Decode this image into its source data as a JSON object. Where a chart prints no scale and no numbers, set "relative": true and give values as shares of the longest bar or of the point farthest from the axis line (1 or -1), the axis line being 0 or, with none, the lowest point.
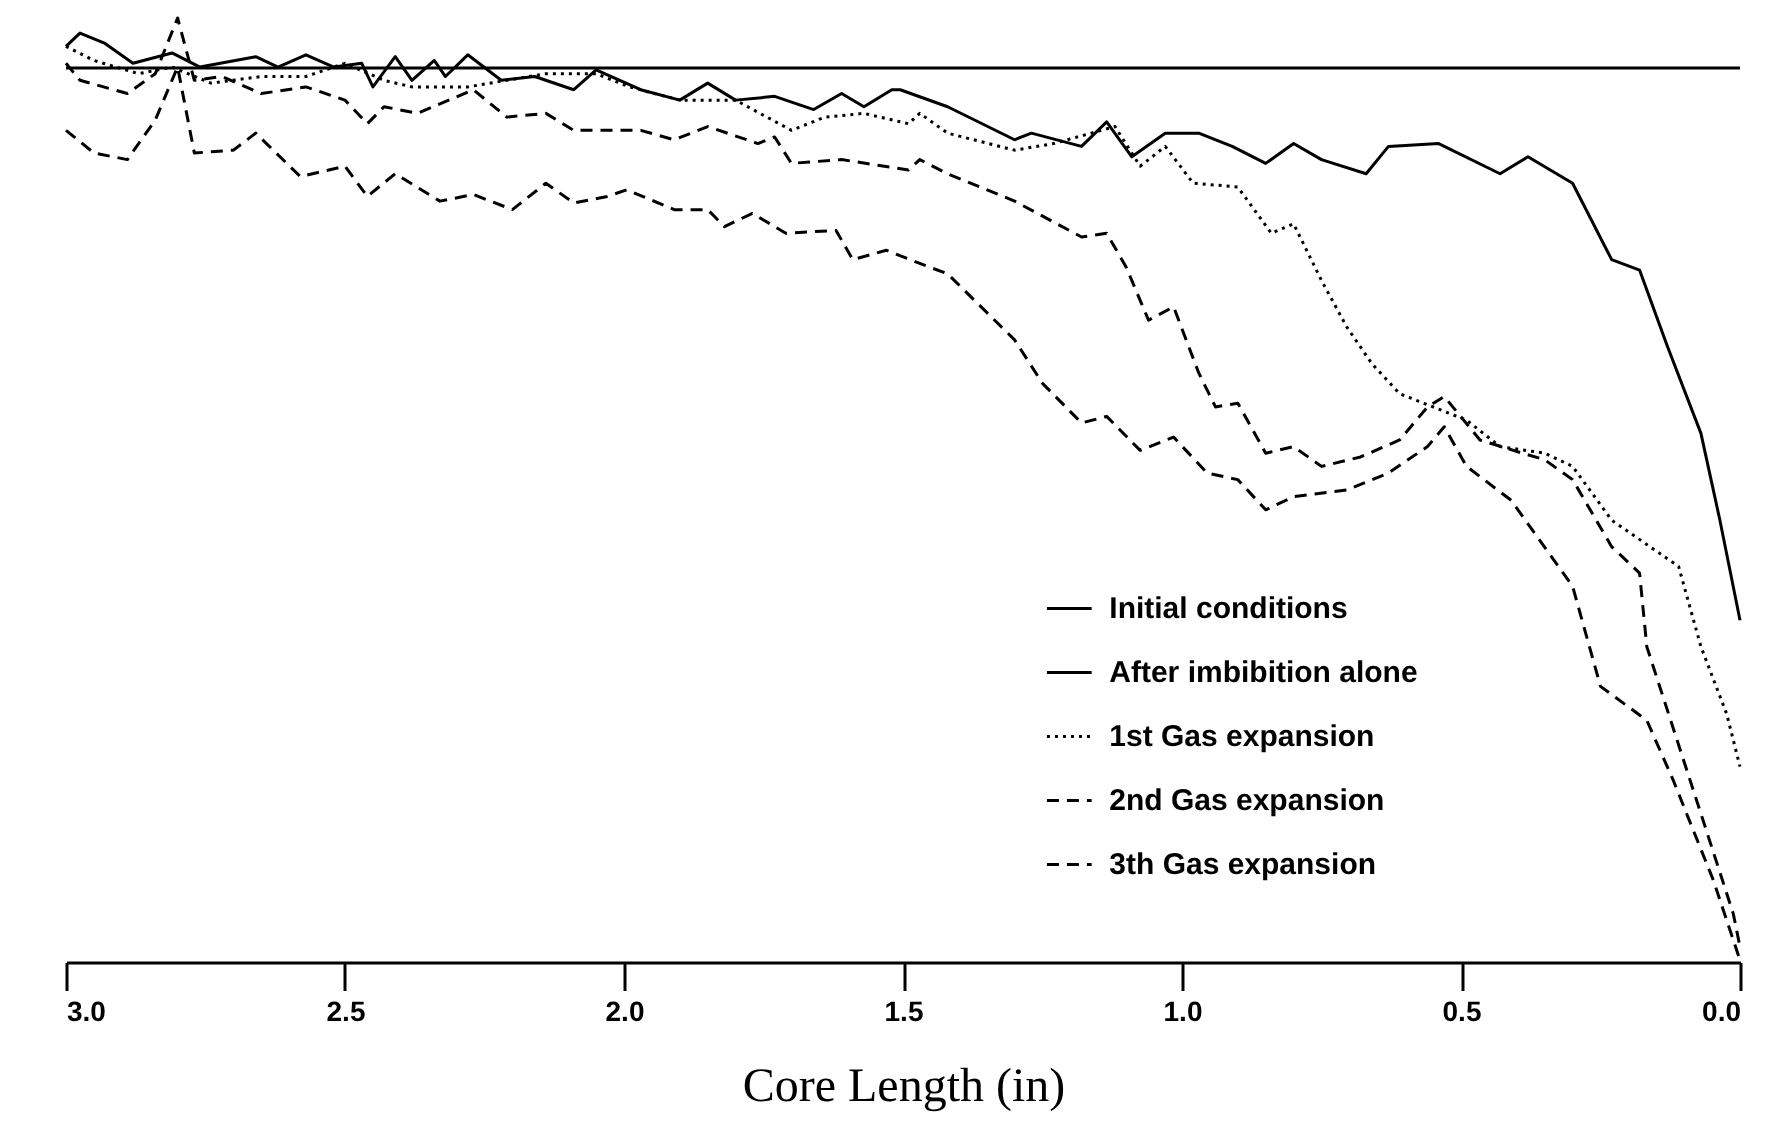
{
  "chart_data": {
    "type": "line",
    "xlabel": "Core Length (in)",
    "relative": true,
    "xlim": [
      3.0,
      0.0
    ],
    "xticks": [
      {
        "value": 3,
        "label": "3.0"
      },
      {
        "value": 2.5,
        "label": "2.5"
      },
      {
        "value": 2,
        "label": "2.0"
      },
      {
        "value": 1.5,
        "label": "1.5"
      },
      {
        "value": 1,
        "label": "1.0"
      },
      {
        "value": 0.5,
        "label": "0.5"
      },
      {
        "value": 0,
        "label": "0.0"
      }
    ],
    "grid": false,
    "legend": "bottom right",
    "series": [
      {
        "name": "Initial conditions",
        "color": "#000000",
        "line_style": "solid",
        "x": [
          3.0,
          0.0
        ],
        "values": [
          0.947,
          0.947
        ]
      },
      {
        "name": "After imbibition alone",
        "color": "#000000",
        "line_style": "solid",
        "x": [
          3.0,
          2.975,
          2.93,
          2.88,
          2.81,
          2.76,
          2.66,
          2.62,
          2.57,
          2.52,
          2.47,
          2.45,
          2.41,
          2.38,
          2.34,
          2.32,
          2.28,
          2.22,
          2.16,
          2.09,
          2.05,
          1.97,
          1.9,
          1.85,
          1.8,
          1.73,
          1.66,
          1.61,
          1.57,
          1.52,
          1.505,
          1.42,
          1.3,
          1.27,
          1.18,
          1.135,
          1.09,
          1.03,
          0.97,
          0.91,
          0.85,
          0.8,
          0.75,
          0.67,
          0.63,
          0.54,
          0.43,
          0.38,
          0.3,
          0.23,
          0.18,
          0.13,
          0.07,
          0.036,
          0.0
        ],
        "values": [
          0.97,
          0.984,
          0.973,
          0.952,
          0.963,
          0.948,
          0.959,
          0.948,
          0.961,
          0.948,
          0.952,
          0.927,
          0.959,
          0.934,
          0.955,
          0.938,
          0.961,
          0.934,
          0.938,
          0.924,
          0.945,
          0.924,
          0.913,
          0.931,
          0.913,
          0.917,
          0.903,
          0.92,
          0.906,
          0.924,
          0.924,
          0.906,
          0.871,
          0.878,
          0.864,
          0.89,
          0.853,
          0.878,
          0.878,
          0.864,
          0.846,
          0.867,
          0.85,
          0.835,
          0.864,
          0.867,
          0.835,
          0.853,
          0.825,
          0.744,
          0.733,
          0.652,
          0.56,
          0.468,
          0.362
        ]
      },
      {
        "name": "1st Gas expansion",
        "color": "#000000",
        "line_style": "dotted",
        "x": [
          3.0,
          2.95,
          2.87,
          2.81,
          2.74,
          2.65,
          2.57,
          2.5,
          2.43,
          2.38,
          2.28,
          2.21,
          2.14,
          2.05,
          1.99,
          1.9,
          1.8,
          1.7,
          1.64,
          1.57,
          1.49,
          1.47,
          1.42,
          1.3,
          1.23,
          1.12,
          1.075,
          1.03,
          0.98,
          0.9,
          0.84,
          0.8,
          0.75,
          0.705,
          0.66,
          0.61,
          0.55,
          0.49,
          0.43,
          0.35,
          0.3,
          0.23,
          0.11,
          0.07,
          0.024,
          0.0
        ],
        "values": [
          0.97,
          0.955,
          0.941,
          0.948,
          0.931,
          0.938,
          0.938,
          0.952,
          0.934,
          0.927,
          0.927,
          0.934,
          0.941,
          0.941,
          0.927,
          0.913,
          0.913,
          0.881,
          0.895,
          0.899,
          0.888,
          0.899,
          0.878,
          0.86,
          0.867,
          0.885,
          0.843,
          0.864,
          0.825,
          0.821,
          0.772,
          0.782,
          0.722,
          0.673,
          0.634,
          0.602,
          0.588,
          0.574,
          0.546,
          0.539,
          0.525,
          0.468,
          0.419,
          0.334,
          0.263,
          0.207
        ]
      },
      {
        "name": "2nd Gas expansion",
        "color": "#000000",
        "line_style": "dashed",
        "x": [
          3.0,
          2.975,
          2.89,
          2.84,
          2.8,
          2.77,
          2.72,
          2.65,
          2.57,
          2.5,
          2.46,
          2.43,
          2.37,
          2.27,
          2.21,
          2.14,
          2.09,
          1.97,
          1.91,
          1.85,
          1.76,
          1.73,
          1.7,
          1.61,
          1.49,
          1.47,
          1.42,
          1.3,
          1.18,
          1.135,
          1.1,
          1.06,
          1.015,
          0.97,
          0.94,
          0.9,
          0.85,
          0.8,
          0.75,
          0.68,
          0.61,
          0.56,
          0.53,
          0.466,
          0.39,
          0.35,
          0.3,
          0.23,
          0.18,
          0.167,
          0.07,
          0.012,
          0.0
        ],
        "values": [
          0.952,
          0.934,
          0.92,
          0.941,
          1.0,
          0.934,
          0.938,
          0.92,
          0.927,
          0.913,
          0.888,
          0.906,
          0.899,
          0.924,
          0.895,
          0.899,
          0.881,
          0.881,
          0.871,
          0.885,
          0.867,
          0.874,
          0.846,
          0.85,
          0.839,
          0.85,
          0.835,
          0.806,
          0.768,
          0.772,
          0.736,
          0.68,
          0.694,
          0.624,
          0.588,
          0.592,
          0.539,
          0.546,
          0.525,
          0.535,
          0.553,
          0.588,
          0.599,
          0.553,
          0.539,
          0.532,
          0.511,
          0.44,
          0.412,
          0.334,
          0.157,
          0.051,
          0.016
        ]
      },
      {
        "name": "3th Gas expansion",
        "color": "#000000",
        "line_style": "dashed",
        "x": [
          3.0,
          2.95,
          2.89,
          2.84,
          2.8,
          2.77,
          2.7,
          2.66,
          2.58,
          2.5,
          2.46,
          2.41,
          2.33,
          2.27,
          2.2,
          2.14,
          2.09,
          2.03,
          1.995,
          1.91,
          1.85,
          1.82,
          1.77,
          1.71,
          1.62,
          1.59,
          1.53,
          1.47,
          1.42,
          1.36,
          1.3,
          1.25,
          1.18,
          1.135,
          1.075,
          1.015,
          0.955,
          0.9,
          0.85,
          0.8,
          0.705,
          0.63,
          0.56,
          0.53,
          0.49,
          0.41,
          0.3,
          0.25,
          0.167,
          0.12,
          0.048,
          0.0
        ],
        "values": [
          0.881,
          0.857,
          0.85,
          0.892,
          0.948,
          0.857,
          0.86,
          0.878,
          0.832,
          0.843,
          0.811,
          0.835,
          0.806,
          0.813,
          0.797,
          0.825,
          0.804,
          0.811,
          0.818,
          0.797,
          0.797,
          0.779,
          0.793,
          0.772,
          0.775,
          0.744,
          0.754,
          0.74,
          0.729,
          0.694,
          0.659,
          0.613,
          0.571,
          0.578,
          0.542,
          0.556,
          0.518,
          0.511,
          0.479,
          0.493,
          0.5,
          0.518,
          0.546,
          0.567,
          0.525,
          0.489,
          0.398,
          0.292,
          0.256,
          0.193,
          0.087,
          0.002
        ]
      }
    ]
  }
}
